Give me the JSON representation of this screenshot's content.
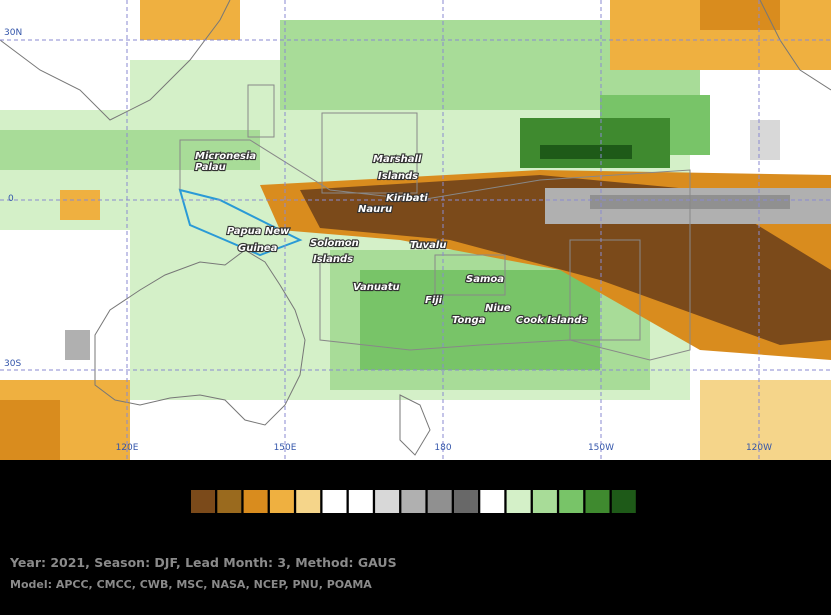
{
  "map": {
    "lat_labels": [
      "30N",
      "0",
      "30S"
    ],
    "lon_labels": [
      "120E",
      "150E",
      "180",
      "150W",
      "120W"
    ],
    "places": [
      "Micronesia",
      "Palau",
      "Marshall",
      "Islands",
      "Kiribati",
      "Nauru",
      "Papua New",
      "Guinea",
      "Solomon",
      "Islands",
      "Tuvalu",
      "Samoa",
      "Vanuatu",
      "Fiji",
      "Niue",
      "Tonga",
      "Cook Islands"
    ]
  },
  "legend": {
    "colors": [
      "#7b4a1a",
      "#9a6a1e",
      "#d98c1e",
      "#efb040",
      "#f5d58a",
      "#ffffff",
      "#ffffff",
      "#d8d8d8",
      "#b0b0b0",
      "#909090",
      "#686868",
      "#ffffff",
      "#d4f0c8",
      "#a8dc98",
      "#78c468",
      "#3f8a2f",
      "#1e5a18"
    ]
  },
  "footer": {
    "line1": "Year: 2021, Season: DJF, Lead Month: 3, Method: GAUS",
    "line2": "Model: APCC, CMCC, CWB, MSC, NASA, NCEP, PNU, POAMA"
  }
}
